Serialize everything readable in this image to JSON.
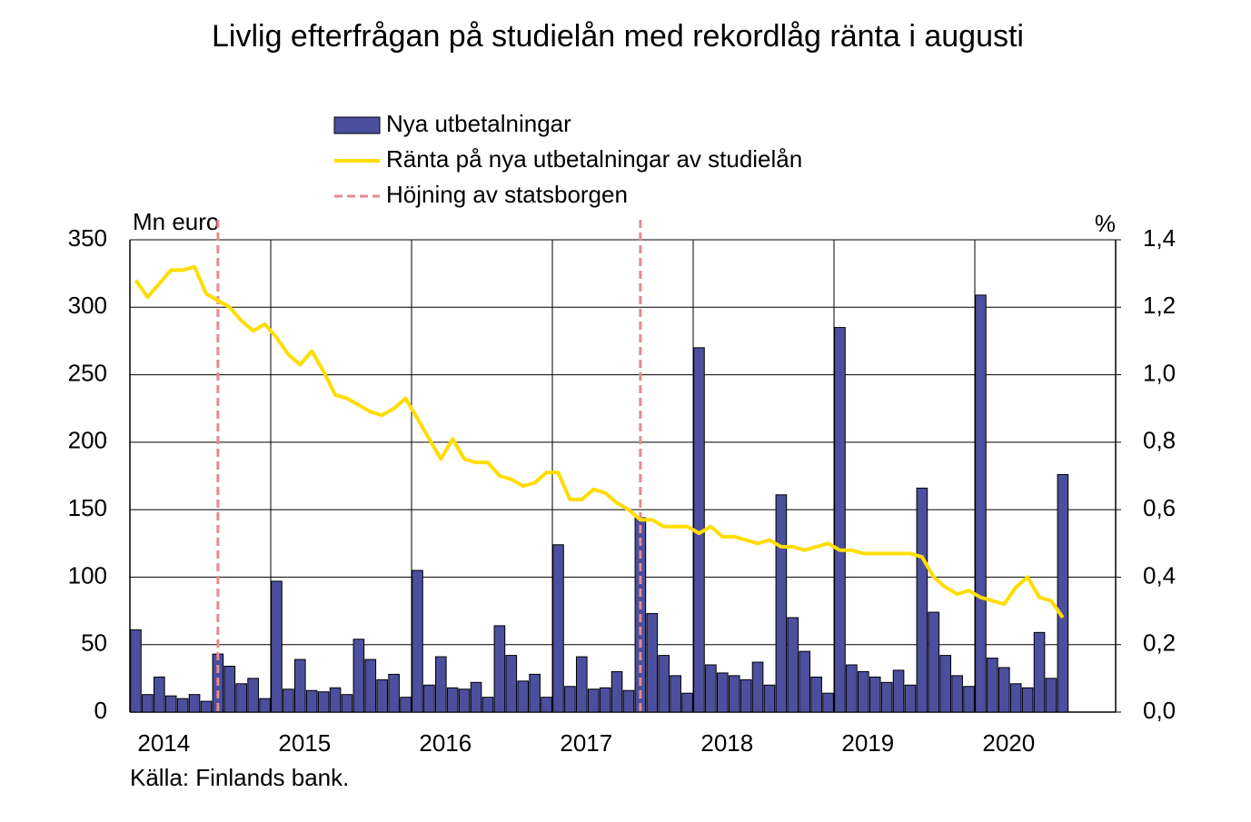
{
  "chart_data": {
    "type": "bar_line",
    "title": "Livlig efterfrågan på studielån med rekordlåg ränta i augusti",
    "ylabel": "Mn euro",
    "y2label": "%",
    "source": "Källa: Finlands bank.",
    "categories": [
      null,
      null,
      "2014",
      null,
      null,
      null,
      null,
      null,
      null,
      null,
      null,
      null,
      null,
      null,
      "2015",
      null,
      null,
      null,
      null,
      null,
      null,
      null,
      null,
      null,
      null,
      null,
      "2016",
      null,
      null,
      null,
      null,
      null,
      null,
      null,
      null,
      null,
      null,
      null,
      "2017",
      null,
      null,
      null,
      null,
      null,
      null,
      null,
      null,
      null,
      null,
      null,
      "2018",
      null,
      null,
      null,
      null,
      null,
      null,
      null,
      null,
      null,
      null,
      null,
      "2019",
      null,
      null,
      null,
      null,
      null,
      null,
      null,
      null,
      null,
      null,
      null,
      "2020",
      null,
      null,
      null,
      null,
      null,
      null,
      null,
      null,
      null
    ],
    "series": [
      {
        "name": "Nya utbetalningar",
        "type": "bar",
        "color": "#4b4f9e",
        "values": [
          61,
          13,
          26,
          12,
          10,
          13,
          8,
          43,
          34,
          21,
          25,
          10,
          97,
          17,
          39,
          16,
          15,
          18,
          13,
          54,
          39,
          24,
          28,
          11,
          105,
          20,
          41,
          18,
          17,
          22,
          11,
          64,
          42,
          23,
          28,
          11,
          124,
          19,
          41,
          17,
          18,
          30,
          16,
          144,
          73,
          42,
          27,
          14,
          270,
          35,
          29,
          27,
          24,
          37,
          20,
          161,
          70,
          45,
          26,
          14,
          285,
          35,
          30,
          26,
          22,
          31,
          20,
          166,
          74,
          42,
          27,
          19,
          309,
          40,
          33,
          21,
          18,
          59,
          25,
          176,
          null,
          null,
          null,
          null
        ]
      },
      {
        "name": "Ränta på nya utbetalningar av studielån",
        "type": "line",
        "axis": "y2",
        "color": "#ffdd00",
        "values": [
          1.28,
          1.23,
          1.27,
          1.31,
          1.31,
          1.32,
          1.24,
          1.22,
          1.2,
          1.16,
          1.13,
          1.15,
          1.11,
          1.06,
          1.03,
          1.07,
          1.01,
          0.94,
          0.93,
          0.91,
          0.89,
          0.88,
          0.9,
          0.93,
          0.87,
          0.81,
          0.75,
          0.81,
          0.75,
          0.74,
          0.74,
          0.7,
          0.69,
          0.67,
          0.68,
          0.71,
          0.71,
          0.63,
          0.63,
          0.66,
          0.65,
          0.62,
          0.6,
          0.57,
          0.57,
          0.55,
          0.55,
          0.55,
          0.53,
          0.55,
          0.52,
          0.52,
          0.51,
          0.5,
          0.51,
          0.49,
          0.49,
          0.48,
          0.49,
          0.5,
          0.48,
          0.48,
          0.47,
          0.47,
          0.47,
          0.47,
          0.47,
          0.46,
          0.4,
          0.37,
          0.35,
          0.36,
          0.34,
          0.33,
          0.32,
          0.37,
          0.4,
          0.34,
          0.33,
          0.28,
          null,
          null,
          null,
          null
        ]
      }
    ],
    "markers": {
      "name": "Höjning av statsborgen",
      "color": "#e8898e",
      "positions": [
        7,
        43
      ]
    },
    "ylim": [
      0,
      350
    ],
    "yticks": [
      0,
      50,
      100,
      150,
      200,
      250,
      300,
      350
    ],
    "y2lim": [
      0,
      1.4
    ],
    "y2ticks": [
      {
        "value": 0,
        "label": "0,0"
      },
      {
        "value": 0.2,
        "label": "0,2"
      },
      {
        "value": 0.4,
        "label": "0,4"
      },
      {
        "value": 0.6,
        "label": "0,6"
      },
      {
        "value": 0.8,
        "label": "0,8"
      },
      {
        "value": 1.0,
        "label": "1,0"
      },
      {
        "value": 1.2,
        "label": "1,2"
      },
      {
        "value": 1.4,
        "label": "1,4"
      }
    ],
    "grid": true
  }
}
